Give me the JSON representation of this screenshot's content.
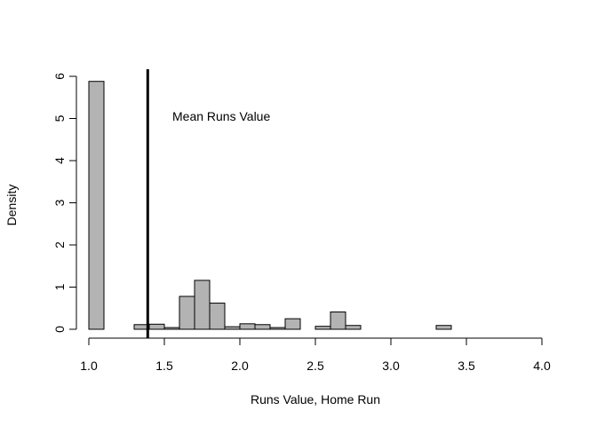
{
  "chart_data": {
    "type": "bar",
    "title": "",
    "xlabel": "Runs Value, Home Run",
    "ylabel": "Density",
    "xlim": [
      1.0,
      4.0
    ],
    "ylim": [
      0,
      6
    ],
    "x_ticks": [
      1.0,
      1.5,
      2.0,
      2.5,
      3.0,
      3.5,
      4.0
    ],
    "x_tick_labels": [
      "1.0",
      "1.5",
      "2.0",
      "2.5",
      "3.0",
      "3.5",
      "4.0"
    ],
    "y_ticks": [
      0,
      1,
      2,
      3,
      4,
      5,
      6
    ],
    "y_tick_labels": [
      "0",
      "1",
      "2",
      "3",
      "4",
      "5",
      "6"
    ],
    "bin_width": 0.1,
    "bins": [
      {
        "x0": 1.0,
        "x1": 1.1,
        "density": 5.88
      },
      {
        "x0": 1.1,
        "x1": 1.2,
        "density": 0.0
      },
      {
        "x0": 1.2,
        "x1": 1.3,
        "density": 0.0
      },
      {
        "x0": 1.3,
        "x1": 1.4,
        "density": 0.11
      },
      {
        "x0": 1.4,
        "x1": 1.5,
        "density": 0.12
      },
      {
        "x0": 1.5,
        "x1": 1.6,
        "density": 0.04
      },
      {
        "x0": 1.6,
        "x1": 1.7,
        "density": 0.78
      },
      {
        "x0": 1.7,
        "x1": 1.8,
        "density": 1.16
      },
      {
        "x0": 1.8,
        "x1": 1.9,
        "density": 0.62
      },
      {
        "x0": 1.9,
        "x1": 2.0,
        "density": 0.06
      },
      {
        "x0": 2.0,
        "x1": 2.1,
        "density": 0.13
      },
      {
        "x0": 2.1,
        "x1": 2.2,
        "density": 0.11
      },
      {
        "x0": 2.2,
        "x1": 2.3,
        "density": 0.04
      },
      {
        "x0": 2.3,
        "x1": 2.4,
        "density": 0.25
      },
      {
        "x0": 2.4,
        "x1": 2.5,
        "density": 0.0
      },
      {
        "x0": 2.5,
        "x1": 2.6,
        "density": 0.07
      },
      {
        "x0": 2.6,
        "x1": 2.7,
        "density": 0.41
      },
      {
        "x0": 2.7,
        "x1": 2.8,
        "density": 0.09
      },
      {
        "x0": 2.8,
        "x1": 2.9,
        "density": 0.0
      },
      {
        "x0": 2.9,
        "x1": 3.0,
        "density": 0.0
      },
      {
        "x0": 3.0,
        "x1": 3.1,
        "density": 0.0
      },
      {
        "x0": 3.1,
        "x1": 3.2,
        "density": 0.0
      },
      {
        "x0": 3.2,
        "x1": 3.3,
        "density": 0.0
      },
      {
        "x0": 3.3,
        "x1": 3.4,
        "density": 0.09
      }
    ],
    "reference_line": {
      "x": 1.39,
      "label": "Mean Runs Value"
    },
    "bar_fill": "#b3b3b3",
    "bar_stroke": "#000000",
    "grid": false,
    "legend": "none"
  }
}
